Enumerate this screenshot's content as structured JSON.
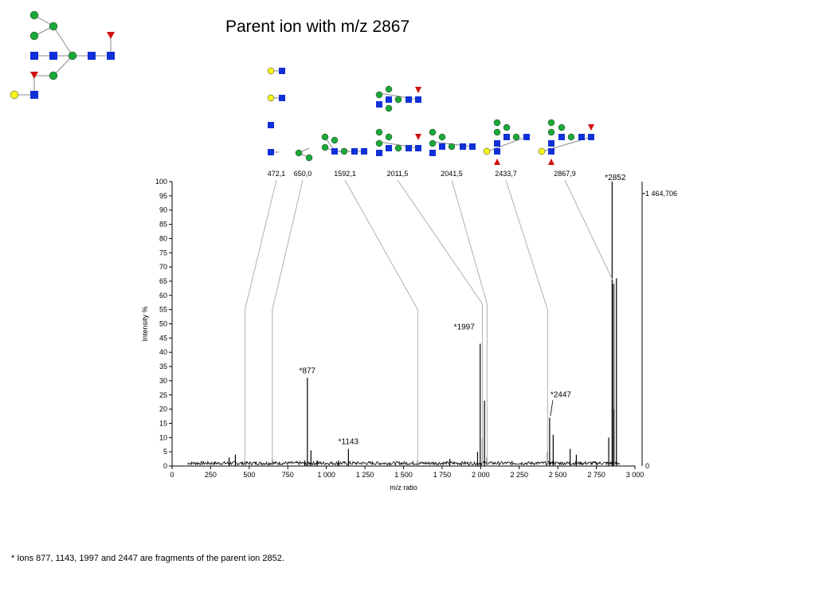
{
  "title": "Parent ion with m/z 2867",
  "footnote": "* Ions 877, 1143, 1997 and 2447 are fragments of the parent ion 2852.",
  "colors": {
    "galactose": "#f5f51e",
    "glcnac": "#1030d8",
    "mannose": "#1aa838",
    "fucose": "#d01010",
    "line": "#000000",
    "leader": "#b0b0b0"
  },
  "chart_data": {
    "type": "line",
    "xlabel": "m/z ratio",
    "ylabel": "Intensity %",
    "xlim": [
      0,
      3000
    ],
    "ylim": [
      0,
      100
    ],
    "xticks": [
      0,
      250,
      500,
      750,
      1000,
      1250,
      1500,
      1750,
      2000,
      2250,
      2500,
      2750,
      3000
    ],
    "xtick_labels": [
      "0",
      "250",
      "500",
      "750",
      "1 000",
      "1 250",
      "1 500",
      "1 750",
      "2 000",
      "2 250",
      "2 500",
      "2 750",
      "3 000"
    ],
    "yticks": [
      0,
      5,
      10,
      15,
      20,
      25,
      30,
      35,
      40,
      45,
      50,
      55,
      60,
      65,
      70,
      75,
      80,
      85,
      90,
      95,
      100
    ],
    "right_axis_labels": {
      "top": "1 464,706",
      "bottom": "0"
    },
    "peaks": [
      {
        "x": 370,
        "y": 3
      },
      {
        "x": 410,
        "y": 4
      },
      {
        "x": 472,
        "y": 2
      },
      {
        "x": 650,
        "y": 2.5
      },
      {
        "x": 860,
        "y": 2
      },
      {
        "x": 877,
        "y": 31
      },
      {
        "x": 900,
        "y": 5.5
      },
      {
        "x": 940,
        "y": 2
      },
      {
        "x": 1080,
        "y": 2
      },
      {
        "x": 1143,
        "y": 6
      },
      {
        "x": 1592,
        "y": 2
      },
      {
        "x": 1800,
        "y": 2.5
      },
      {
        "x": 1980,
        "y": 5
      },
      {
        "x": 1997,
        "y": 43
      },
      {
        "x": 2011,
        "y": 10
      },
      {
        "x": 2025,
        "y": 23
      },
      {
        "x": 2041,
        "y": 3
      },
      {
        "x": 2433,
        "y": 5
      },
      {
        "x": 2447,
        "y": 17
      },
      {
        "x": 2470,
        "y": 11
      },
      {
        "x": 2580,
        "y": 6
      },
      {
        "x": 2620,
        "y": 4
      },
      {
        "x": 2830,
        "y": 10
      },
      {
        "x": 2852,
        "y": 100
      },
      {
        "x": 2860,
        "y": 64
      },
      {
        "x": 2867,
        "y": 20
      },
      {
        "x": 2880,
        "y": 66
      }
    ],
    "annotations": [
      {
        "label": "*877",
        "x": 877,
        "y": 31
      },
      {
        "label": "*1143",
        "x": 1143,
        "y": 6
      },
      {
        "label": "*1997",
        "x": 1997,
        "y": 43
      },
      {
        "label": "*2447",
        "x": 2447,
        "y": 17
      },
      {
        "label": "*2852",
        "x": 2852,
        "y": 100
      }
    ],
    "fragment_labels": [
      {
        "label": "472,1",
        "mz": 472.1,
        "y": 55
      },
      {
        "label": "650,0",
        "mz": 650.0,
        "y": 55
      },
      {
        "label": "1592,1",
        "mz": 1592.1,
        "y": 55
      },
      {
        "label": "2011,5",
        "mz": 2011.5,
        "y": 57
      },
      {
        "label": "2041,5",
        "mz": 2041.5,
        "y": 57
      },
      {
        "label": "2433,7",
        "mz": 2433.7,
        "y": 55
      },
      {
        "label": "2867,9",
        "mz": 2867.9,
        "y": 64
      }
    ]
  }
}
